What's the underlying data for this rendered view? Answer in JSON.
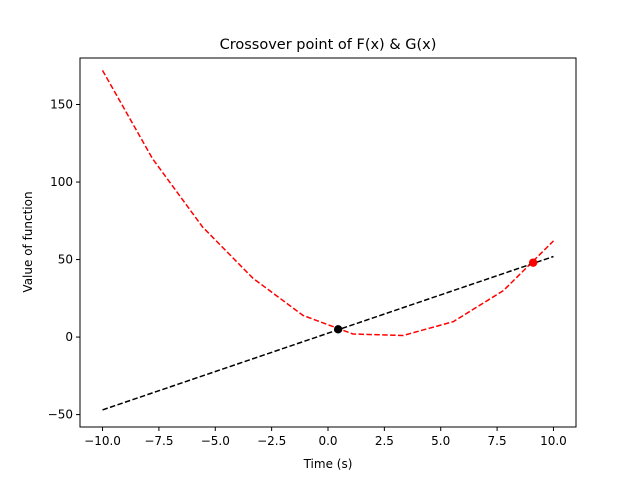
{
  "chart_data": {
    "type": "line",
    "title": "Crossover point of F(x) & G(x)",
    "xlabel": "Time (s)",
    "ylabel": "Value of function",
    "xlim": [
      -11,
      11
    ],
    "ylim": [
      -58,
      180
    ],
    "xticks": [
      -10.0,
      -7.5,
      -5.0,
      -2.5,
      0.0,
      2.5,
      5.0,
      7.5,
      10.0
    ],
    "xtick_labels": [
      "−10.0",
      "−7.5",
      "−5.0",
      "−2.5",
      "0.0",
      "2.5",
      "5.0",
      "7.5",
      "10.0"
    ],
    "yticks": [
      -50,
      0,
      50,
      100,
      150
    ],
    "ytick_labels": [
      "−50",
      "0",
      "50",
      "100",
      "150"
    ],
    "grid": false,
    "series": [
      {
        "color": "#ff0000",
        "style": "dashed",
        "x": [
          -10.0,
          -7.78,
          -5.56,
          -3.33,
          -1.11,
          1.11,
          3.33,
          5.56,
          7.78,
          10.0
        ],
        "y": [
          172,
          115,
          71,
          38,
          14,
          2,
          1,
          10,
          30,
          62
        ]
      },
      {
        "color": "#000000",
        "style": "dashed",
        "x": [
          -10.0,
          10.0
        ],
        "y": [
          -47,
          52
        ]
      }
    ],
    "points": [
      {
        "x": 0.45,
        "y": 5,
        "color": "#000000"
      },
      {
        "x": 9.1,
        "y": 48,
        "color": "#ff0000"
      }
    ]
  }
}
